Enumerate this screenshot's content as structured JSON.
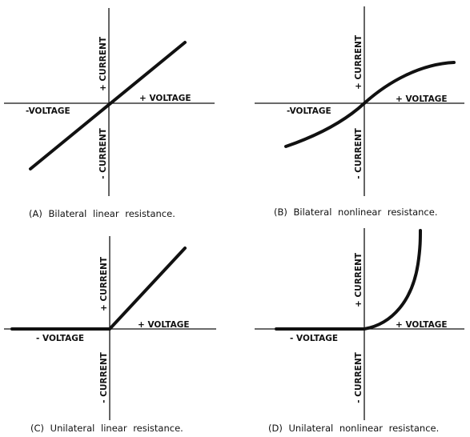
{
  "panels": [
    {
      "caption": "(A) Bilateral linear resistance.",
      "plus_current": "+ CURRENT",
      "minus_current": "- CURRENT",
      "minus_voltage": "-VOLTAGE",
      "plus_voltage": "+ VOLTAGE"
    },
    {
      "caption": "(B) Bilateral nonlinear resistance.",
      "plus_current": "+ CURRENT",
      "minus_current": "- CURRENT",
      "minus_voltage": "-VOLTAGE",
      "plus_voltage": "+ VOLTAGE"
    },
    {
      "caption": "(C) Unilateral linear resistance.",
      "plus_current": "+ CURRENT",
      "minus_current": "- CURRENT",
      "minus_voltage": "- VOLTAGE",
      "plus_voltage": "+ VOLTAGE"
    },
    {
      "caption": "(D) Unilateral nonlinear resistance.",
      "plus_current": "+ CURRENT",
      "minus_current": "- CURRENT",
      "minus_voltage": "- VOLTAGE",
      "plus_voltage": "+ VOLTAGE"
    }
  ]
}
